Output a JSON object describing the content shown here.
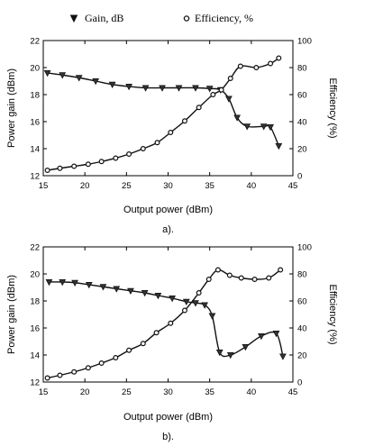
{
  "legend": {
    "gain_label": "Gain, dB",
    "efficiency_label": "Efficiency, %"
  },
  "chart_data": [
    {
      "type": "line",
      "panel_label": "a).",
      "xlabel": "Output power (dBm)",
      "ylabel": "Power gain (dBm)",
      "y2label": "Efficiency (%)",
      "xlim": [
        15,
        45
      ],
      "ylim": [
        12,
        22
      ],
      "y2lim": [
        0,
        100
      ],
      "xticks": [
        15,
        20,
        25,
        30,
        35,
        40,
        45
      ],
      "yticks": [
        12,
        14,
        16,
        18,
        20,
        22
      ],
      "y2ticks": [
        0,
        20,
        40,
        60,
        80,
        100
      ],
      "grid": false,
      "series": [
        {
          "name": "Gain, dB",
          "axis": "left",
          "marker": "triangle-down",
          "x": [
            15.5,
            17.3,
            19.3,
            21.3,
            23.3,
            25.3,
            27.3,
            29.3,
            31.3,
            33.3,
            35.0,
            36.3,
            37.3,
            38.3,
            39.5,
            41.5,
            42.3,
            43.3
          ],
          "y": [
            19.6,
            19.45,
            19.25,
            19.0,
            18.75,
            18.6,
            18.5,
            18.5,
            18.5,
            18.5,
            18.45,
            18.35,
            17.7,
            16.3,
            15.65,
            15.65,
            15.6,
            14.2
          ]
        },
        {
          "name": "Efficiency, %",
          "axis": "right",
          "marker": "circle",
          "x": [
            15.5,
            17.0,
            18.7,
            20.4,
            22.0,
            23.7,
            25.3,
            27.0,
            28.7,
            30.3,
            32.0,
            33.7,
            35.4,
            36.4,
            37.5,
            38.7,
            40.6,
            42.3,
            43.3
          ],
          "y": [
            4,
            5.5,
            7,
            8.5,
            10.5,
            13,
            16,
            20,
            24.5,
            32,
            40.5,
            50.5,
            60,
            63.5,
            72,
            81,
            80,
            83,
            87
          ]
        }
      ]
    },
    {
      "type": "line",
      "panel_label": "b).",
      "xlabel": "Output power (dBm)",
      "ylabel": "Power gain (dBm)",
      "y2label": "Efficiency (%)",
      "xlim": [
        15,
        45
      ],
      "ylim": [
        12,
        22
      ],
      "y2lim": [
        0,
        100
      ],
      "xticks": [
        15,
        20,
        25,
        30,
        35,
        40,
        45
      ],
      "yticks": [
        12,
        14,
        16,
        18,
        20,
        22
      ],
      "y2ticks": [
        0,
        20,
        40,
        60,
        80,
        100
      ],
      "grid": false,
      "series": [
        {
          "name": "Gain, dB",
          "axis": "left",
          "marker": "triangle-down",
          "x": [
            15.7,
            17.3,
            18.8,
            20.5,
            22.2,
            23.8,
            25.5,
            27.2,
            28.8,
            30.5,
            32.2,
            33.3,
            34.4,
            35.3,
            36.2,
            37.5,
            39.3,
            41.2,
            43.0,
            43.8
          ],
          "y": [
            19.4,
            19.4,
            19.35,
            19.2,
            19.05,
            18.9,
            18.75,
            18.6,
            18.4,
            18.2,
            17.95,
            17.85,
            17.7,
            16.9,
            14.2,
            14.0,
            14.6,
            15.4,
            15.6,
            13.9
          ]
        },
        {
          "name": "Efficiency, %",
          "axis": "right",
          "marker": "circle",
          "x": [
            15.5,
            17.0,
            18.7,
            20.4,
            22.0,
            23.7,
            25.3,
            27.0,
            28.6,
            30.3,
            32.0,
            33.7,
            34.9,
            36.0,
            37.4,
            38.8,
            40.4,
            42.1,
            43.5
          ],
          "y": [
            3,
            5,
            7.5,
            10.5,
            14,
            18,
            23.5,
            28.5,
            36.5,
            43.5,
            53,
            66,
            76,
            83,
            79,
            77,
            76,
            77,
            83
          ]
        }
      ]
    }
  ]
}
